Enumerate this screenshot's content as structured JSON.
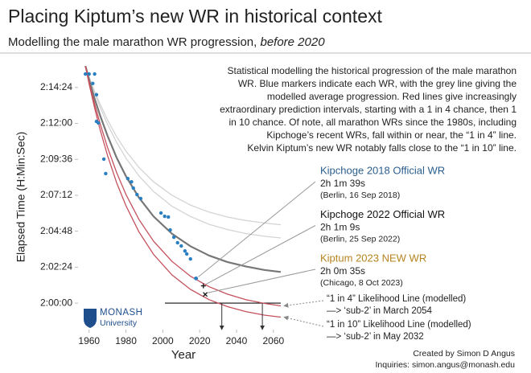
{
  "chart_data": {
    "type": "line",
    "title": "Placing Kiptum’s new WR in historical context",
    "subtitle": "Modelling the male marathon WR progression, ",
    "subtitle_emphasis": "before 2020",
    "description": [
      "Statistical modelling the historical progression of the male marathon",
      "WR. Blue markers indicate each WR, with the grey line giving the",
      "modelled average progression. Red lines give increasingly",
      "extraordinary prediction intervals, starting with a 1 in 4 chance, then 1",
      "in 10 chance. Of note, all marathon WRs since the 1980s, including",
      "Kipchoge’s recent WRs, fall within or near, the “1 in 4” line.",
      "Kelvin Kiptum’s new WR notably falls close to the “1 in 10” line."
    ],
    "x_label": "Year",
    "y_label": "Elapsed Time (H:Min:Sec)",
    "xlim": [
      1954,
      2064
    ],
    "xticks": [
      1960,
      1980,
      2000,
      2020,
      2040,
      2060
    ],
    "ylim": [
      7094,
      8160
    ],
    "yticks": [
      {
        "value": 7200,
        "label": "2:00:00"
      },
      {
        "value": 7344,
        "label": "2:02:24"
      },
      {
        "value": 7488,
        "label": "2:04:48"
      },
      {
        "value": 7632,
        "label": "2:07:12"
      },
      {
        "value": 7776,
        "label": "2:09:36"
      },
      {
        "value": 7920,
        "label": "2:12:00"
      },
      {
        "value": 8064,
        "label": "2:14:24"
      }
    ],
    "x": [
      1958,
      1960,
      1963,
      1966,
      1970,
      1975,
      1980,
      1987,
      1995,
      2005,
      2015,
      2025,
      2035,
      2045,
      2055,
      2064
    ],
    "series": [
      {
        "color": "#d4d4d4",
        "values": [
          8150,
          8108,
          8049,
          7997,
          7934,
          7866,
          7809,
          7744,
          7686,
          7632,
          7593,
          7565,
          7545,
          7531,
          7521,
          7514
        ]
      },
      {
        "color": "#d4d4d4",
        "values": [
          8150,
          8105,
          8041,
          7984,
          7916,
          7843,
          7781,
          7710,
          7647,
          7588,
          7547,
          7516,
          7495,
          7479,
          7468,
          7461
        ]
      },
      {
        "color": "#777777",
        "values": [
          8150,
          8096,
          8019,
          7951,
          7870,
          7782,
          7708,
          7623,
          7547,
          7478,
          7428,
          7391,
          7365,
          7347,
          7333,
          7325
        ]
      },
      {
        "color": "#c4505c",
        "values": [
          8150,
          8087,
          7998,
          7918,
          7823,
          7722,
          7635,
          7536,
          7448,
          7367,
          7308,
          7266,
          7236,
          7214,
          7199,
          7189
        ]
      },
      {
        "color": "#c4505c",
        "values": [
          8150,
          8079,
          7982,
          7894,
          7791,
          7681,
          7590,
          7486,
          7395,
          7313,
          7255,
          7214,
          7186,
          7166,
          7152,
          7144
        ]
      }
    ],
    "records": {
      "color": "#2a7fc1",
      "x": [
        1958,
        1960,
        1963,
        1962,
        1964,
        1964,
        1965,
        1968,
        1969,
        1981,
        1983,
        1984,
        1986,
        1988,
        1999,
        2001,
        2003,
        2004,
        2006,
        2008,
        2010,
        2012,
        2013,
        2015,
        2018
      ],
      "values": [
        8118,
        8118,
        8118,
        8080,
        8035,
        7928,
        7922,
        7777,
        7719,
        7699,
        7686,
        7661,
        7635,
        7619,
        7561,
        7548,
        7545,
        7493,
        7464,
        7442,
        7429,
        7409,
        7397,
        7377,
        7299
      ]
    },
    "highlights": [
      {
        "title": "Kipchoge 2018 Official WR",
        "value_label": "2h 1m 39s",
        "note": "(Berlin, 16 Sep 2018)",
        "x": 2018,
        "value": 7299,
        "color": "#2b5d8c",
        "marker": "dot"
      },
      {
        "title": "Kipchoge 2022 Official WR",
        "value_label": "2h 1m 9s",
        "note": "(Berlin, 25 Sep 2022)",
        "x": 2022,
        "value": 7269,
        "color": "#111111",
        "marker": "plus"
      },
      {
        "title": "Kiptum 2023 NEW WR",
        "value_label": "2h 0m 35s",
        "note": "(Chicago, 8 Oct 2023)",
        "x": 2023,
        "value": 7235,
        "color": "#b5841f",
        "marker": "cross"
      }
    ],
    "notes": [
      {
        "line": "“1 in 4” Likelihood Line (modelled)",
        "result": "—> ‘sub-2’ in March 2054",
        "x": 2054
      },
      {
        "line": "“1 in 10” Likelihood Line (modelled)",
        "result": "—> ‘sub-2’ in May 2032",
        "x": 2032
      }
    ],
    "logo": {
      "name": "MONASH",
      "sub": "University"
    },
    "credit": "Created by Simon D Angus",
    "contact": "Inquiries: simon.angus@monash.edu"
  }
}
